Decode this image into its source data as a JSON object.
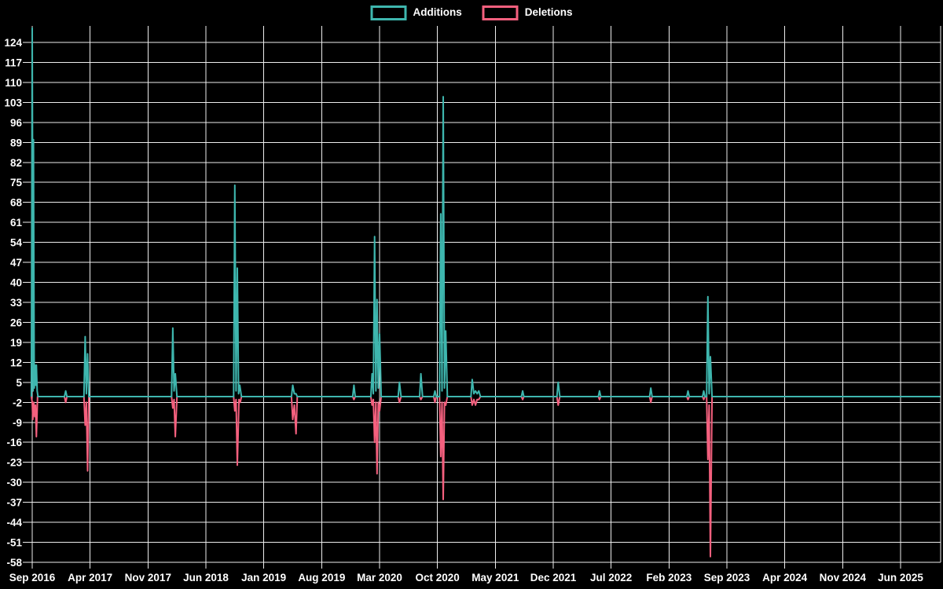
{
  "legend": {
    "additions_label": "Additions",
    "deletions_label": "Deletions"
  },
  "colors": {
    "background": "#000000",
    "additions": "#3EB6AE",
    "deletions": "#F4607E",
    "grid": "#EDEDED",
    "text": "#FFFFFF"
  },
  "chart_data": {
    "type": "line",
    "title": "",
    "legend_position": "top-center",
    "grid": true,
    "x_unit": "months_since_first_tick",
    "x_axis": {
      "tick_labels": [
        "Sep 2016",
        "Apr 2017",
        "Nov 2017",
        "Jun 2018",
        "Jan 2019",
        "Aug 2019",
        "Mar 2020",
        "Oct 2020",
        "May 2021",
        "Dec 2021",
        "Jul 2022",
        "Feb 2023",
        "Sep 2023",
        "Apr 2024",
        "Nov 2024",
        "Jun 2025"
      ],
      "months_between_ticks": 7
    },
    "y_axis": {
      "ticks": [
        124,
        117,
        110,
        103,
        96,
        89,
        82,
        75,
        68,
        61,
        54,
        47,
        40,
        33,
        26,
        19,
        12,
        5,
        -2,
        -9,
        -16,
        -23,
        -30,
        -37,
        -44,
        -51,
        -58
      ],
      "min": -58,
      "max": 130
    },
    "series": [
      {
        "name": "Additions",
        "color": "#3EB6AE",
        "points": [
          [
            -0.1,
            0
          ],
          [
            0,
            129
          ],
          [
            0.1,
            2
          ],
          [
            0.15,
            90
          ],
          [
            0.25,
            3
          ],
          [
            0.33,
            11
          ],
          [
            0.42,
            4
          ],
          [
            0.5,
            11
          ],
          [
            0.6,
            2
          ],
          [
            0.7,
            0
          ],
          [
            3.9,
            0
          ],
          [
            4.05,
            2
          ],
          [
            4.2,
            0
          ],
          [
            6.25,
            0
          ],
          [
            6.4,
            21
          ],
          [
            6.55,
            1
          ],
          [
            6.7,
            15
          ],
          [
            6.85,
            0
          ],
          [
            16.85,
            0
          ],
          [
            17,
            24
          ],
          [
            17.15,
            2
          ],
          [
            17.3,
            8
          ],
          [
            17.5,
            0
          ],
          [
            24.35,
            0
          ],
          [
            24.5,
            74
          ],
          [
            24.65,
            2
          ],
          [
            24.8,
            45
          ],
          [
            24.95,
            1
          ],
          [
            25.1,
            4
          ],
          [
            25.3,
            0
          ],
          [
            31.35,
            0
          ],
          [
            31.5,
            4
          ],
          [
            31.7,
            1
          ],
          [
            31.9,
            1
          ],
          [
            32.05,
            0
          ],
          [
            38.75,
            0
          ],
          [
            38.9,
            4
          ],
          [
            39.05,
            0
          ],
          [
            40.95,
            0
          ],
          [
            41.1,
            8
          ],
          [
            41.25,
            1
          ],
          [
            41.4,
            56
          ],
          [
            41.55,
            2
          ],
          [
            41.7,
            34
          ],
          [
            41.85,
            3
          ],
          [
            42,
            22
          ],
          [
            42.2,
            0
          ],
          [
            44.25,
            0
          ],
          [
            44.4,
            5
          ],
          [
            44.6,
            0
          ],
          [
            46.85,
            0
          ],
          [
            47,
            8
          ],
          [
            47.2,
            0
          ],
          [
            48.55,
            0
          ],
          [
            48.7,
            2
          ],
          [
            48.85,
            0
          ],
          [
            49.25,
            0
          ],
          [
            49.4,
            64
          ],
          [
            49.55,
            2
          ],
          [
            49.7,
            105
          ],
          [
            49.85,
            3
          ],
          [
            50,
            23
          ],
          [
            50.2,
            0
          ],
          [
            53.05,
            0
          ],
          [
            53.2,
            6
          ],
          [
            53.4,
            1
          ],
          [
            53.6,
            2
          ],
          [
            53.8,
            1
          ],
          [
            54,
            2
          ],
          [
            54.2,
            0
          ],
          [
            59.15,
            0
          ],
          [
            59.3,
            2
          ],
          [
            59.45,
            0
          ],
          [
            63.45,
            0
          ],
          [
            63.6,
            5
          ],
          [
            63.8,
            0
          ],
          [
            68.45,
            0
          ],
          [
            68.6,
            2
          ],
          [
            68.75,
            0
          ],
          [
            74.65,
            0
          ],
          [
            74.8,
            3
          ],
          [
            74.95,
            0
          ],
          [
            79.15,
            0
          ],
          [
            79.3,
            2
          ],
          [
            79.45,
            0
          ],
          [
            81.05,
            0
          ],
          [
            81.2,
            2
          ],
          [
            81.35,
            0
          ],
          [
            81.55,
            0
          ],
          [
            81.7,
            35
          ],
          [
            81.85,
            1
          ],
          [
            82,
            14
          ],
          [
            82.2,
            0
          ],
          [
            109.8,
            0
          ]
        ]
      },
      {
        "name": "Deletions",
        "color": "#F4607E",
        "points": [
          [
            -0.1,
            0
          ],
          [
            0,
            -2
          ],
          [
            0.08,
            -8
          ],
          [
            0.18,
            -2
          ],
          [
            0.3,
            -7
          ],
          [
            0.4,
            -3
          ],
          [
            0.5,
            -14
          ],
          [
            0.65,
            0
          ],
          [
            3.9,
            0
          ],
          [
            4.05,
            -2
          ],
          [
            4.2,
            0
          ],
          [
            6.25,
            0
          ],
          [
            6.4,
            -10
          ],
          [
            6.55,
            -2
          ],
          [
            6.7,
            -26
          ],
          [
            6.85,
            0
          ],
          [
            16.85,
            0
          ],
          [
            17,
            -4
          ],
          [
            17.15,
            -1
          ],
          [
            17.3,
            -14
          ],
          [
            17.5,
            0
          ],
          [
            24.35,
            0
          ],
          [
            24.5,
            -5
          ],
          [
            24.65,
            -1
          ],
          [
            24.8,
            -24
          ],
          [
            25,
            -1
          ],
          [
            25.15,
            -2
          ],
          [
            25.3,
            0
          ],
          [
            31.35,
            0
          ],
          [
            31.5,
            -8
          ],
          [
            31.7,
            -3
          ],
          [
            31.9,
            -13
          ],
          [
            32.05,
            0
          ],
          [
            38.75,
            0
          ],
          [
            38.9,
            -1
          ],
          [
            39.05,
            0
          ],
          [
            40.95,
            0
          ],
          [
            41.1,
            -3
          ],
          [
            41.25,
            -1
          ],
          [
            41.4,
            -16
          ],
          [
            41.55,
            -2
          ],
          [
            41.7,
            -27
          ],
          [
            41.85,
            -2
          ],
          [
            42,
            -5
          ],
          [
            42.2,
            0
          ],
          [
            44.25,
            0
          ],
          [
            44.4,
            -2
          ],
          [
            44.6,
            0
          ],
          [
            46.85,
            0
          ],
          [
            47,
            -1
          ],
          [
            47.2,
            0
          ],
          [
            48.55,
            0
          ],
          [
            48.7,
            -2
          ],
          [
            48.85,
            0
          ],
          [
            49.25,
            0
          ],
          [
            49.4,
            -21
          ],
          [
            49.55,
            -2
          ],
          [
            49.7,
            -36
          ],
          [
            49.85,
            -2
          ],
          [
            50,
            -3
          ],
          [
            50.2,
            0
          ],
          [
            53.05,
            0
          ],
          [
            53.2,
            -3
          ],
          [
            53.4,
            -1
          ],
          [
            53.6,
            -3
          ],
          [
            53.8,
            -1
          ],
          [
            54,
            -1
          ],
          [
            54.2,
            0
          ],
          [
            59.15,
            0
          ],
          [
            59.3,
            -1
          ],
          [
            59.45,
            0
          ],
          [
            63.45,
            0
          ],
          [
            63.6,
            -3
          ],
          [
            63.8,
            0
          ],
          [
            68.45,
            0
          ],
          [
            68.6,
            -1
          ],
          [
            68.75,
            0
          ],
          [
            74.65,
            0
          ],
          [
            74.8,
            -2
          ],
          [
            74.95,
            0
          ],
          [
            79.15,
            0
          ],
          [
            79.3,
            -1
          ],
          [
            79.45,
            0
          ],
          [
            81.05,
            0
          ],
          [
            81.2,
            -1
          ],
          [
            81.35,
            0
          ],
          [
            81.55,
            0
          ],
          [
            81.7,
            -22
          ],
          [
            81.85,
            -3
          ],
          [
            82,
            -56
          ],
          [
            82.2,
            0
          ],
          [
            109.8,
            0
          ]
        ]
      }
    ]
  }
}
